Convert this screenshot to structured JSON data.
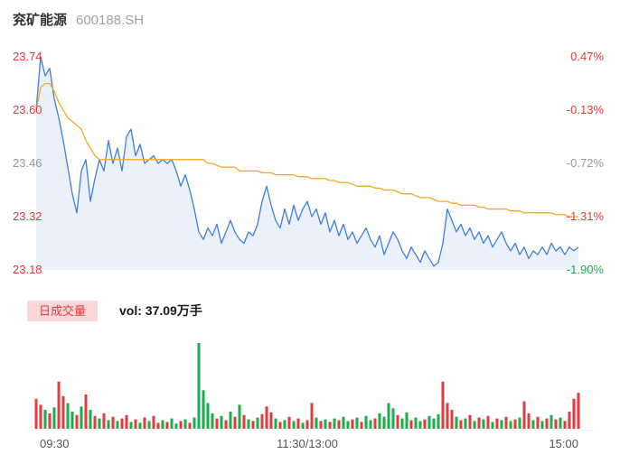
{
  "header": {
    "stock_name": "兖矿能源",
    "stock_code": "600188.SH"
  },
  "volume_header": {
    "badge": "日成交量",
    "vol_label": "vol: 37.09万手"
  },
  "chart_data": {
    "type": "line",
    "subtype": "stock-intraday",
    "x_ticks": [
      "09:30",
      "11:30/13:00",
      "15:00"
    ],
    "ylim": [
      23.18,
      23.74
    ],
    "grid": false,
    "left_axis_labels": [
      {
        "text": "23.74",
        "color": "#e23a3f"
      },
      {
        "text": "23.60",
        "color": "#e23a3f"
      },
      {
        "text": "23.46",
        "color": "#999999"
      },
      {
        "text": "23.32",
        "color": "#e23a3f"
      },
      {
        "text": "23.18",
        "color": "#e23a3f"
      }
    ],
    "right_axis_labels": [
      {
        "text": "0.47%",
        "color": "#e23a3f"
      },
      {
        "text": "-0.13%",
        "color": "#e23a3f"
      },
      {
        "text": "-0.72%",
        "color": "#999999"
      },
      {
        "text": "-1.31%",
        "color": "#e23a3f"
      },
      {
        "text": "-1.90%",
        "color": "#1aad4b"
      }
    ],
    "series": [
      {
        "name": "price",
        "color": "#3f7fd6",
        "fill": "rgba(63,127,214,0.11)",
        "values": [
          23.6,
          23.74,
          23.69,
          23.71,
          23.63,
          23.58,
          23.52,
          23.45,
          23.38,
          23.33,
          23.44,
          23.47,
          23.36,
          23.42,
          23.47,
          23.44,
          23.52,
          23.46,
          23.5,
          23.44,
          23.53,
          23.55,
          23.48,
          23.51,
          23.46,
          23.47,
          23.48,
          23.46,
          23.47,
          23.46,
          23.47,
          23.44,
          23.4,
          23.43,
          23.39,
          23.34,
          23.28,
          23.26,
          23.29,
          23.27,
          23.3,
          23.25,
          23.28,
          23.31,
          23.28,
          23.26,
          23.25,
          23.28,
          23.27,
          23.3,
          23.36,
          23.4,
          23.35,
          23.31,
          23.29,
          23.34,
          23.3,
          23.35,
          23.31,
          23.34,
          23.36,
          23.32,
          23.34,
          23.3,
          23.33,
          23.28,
          23.31,
          23.27,
          23.3,
          23.26,
          23.28,
          23.25,
          23.27,
          23.29,
          23.26,
          23.24,
          23.27,
          23.22,
          23.25,
          23.28,
          23.26,
          23.23,
          23.21,
          23.24,
          23.22,
          23.2,
          23.23,
          23.21,
          23.19,
          23.2,
          23.25,
          23.34,
          23.31,
          23.28,
          23.3,
          23.27,
          23.29,
          23.26,
          23.28,
          23.25,
          23.27,
          23.24,
          23.26,
          23.28,
          23.25,
          23.23,
          23.25,
          23.22,
          23.24,
          23.21,
          23.23,
          23.22,
          23.24,
          23.22,
          23.25,
          23.23,
          23.24,
          23.22,
          23.24,
          23.23,
          23.24
        ]
      },
      {
        "name": "average",
        "color": "#f6a821",
        "values": [
          23.6,
          23.66,
          23.67,
          23.67,
          23.65,
          23.62,
          23.6,
          23.58,
          23.57,
          23.56,
          23.55,
          23.52,
          23.5,
          23.48,
          23.47,
          23.47,
          23.47,
          23.47,
          23.47,
          23.47,
          23.47,
          23.47,
          23.47,
          23.47,
          23.47,
          23.47,
          23.47,
          23.47,
          23.47,
          23.47,
          23.47,
          23.47,
          23.47,
          23.47,
          23.47,
          23.47,
          23.47,
          23.47,
          23.46,
          23.46,
          23.455,
          23.45,
          23.45,
          23.45,
          23.45,
          23.44,
          23.44,
          23.44,
          23.44,
          23.44,
          23.435,
          23.435,
          23.435,
          23.43,
          23.43,
          23.43,
          23.43,
          23.43,
          23.425,
          23.425,
          23.425,
          23.42,
          23.42,
          23.42,
          23.42,
          23.415,
          23.415,
          23.41,
          23.41,
          23.41,
          23.405,
          23.4,
          23.4,
          23.4,
          23.4,
          23.395,
          23.395,
          23.39,
          23.39,
          23.39,
          23.385,
          23.38,
          23.38,
          23.38,
          23.375,
          23.37,
          23.37,
          23.37,
          23.365,
          23.36,
          23.36,
          23.36,
          23.355,
          23.355,
          23.35,
          23.35,
          23.35,
          23.35,
          23.345,
          23.345,
          23.34,
          23.34,
          23.34,
          23.34,
          23.34,
          23.335,
          23.335,
          23.335,
          23.33,
          23.33,
          23.33,
          23.33,
          23.33,
          23.33,
          23.33,
          23.325,
          23.325,
          23.325,
          23.32,
          23.32,
          23.32
        ]
      }
    ],
    "volume": {
      "total_label": "vol: 37.09万手",
      "up_color": "#e23a3f",
      "down_color": "#1aad4b",
      "values": [
        35,
        28,
        22,
        18,
        25,
        55,
        38,
        30,
        20,
        16,
        26,
        40,
        22,
        15,
        12,
        18,
        10,
        14,
        9,
        12,
        16,
        8,
        11,
        7,
        13,
        9,
        15,
        7,
        10,
        8,
        12,
        6,
        9,
        11,
        7,
        13,
        100,
        45,
        30,
        18,
        12,
        15,
        10,
        20,
        14,
        28,
        16,
        11,
        9,
        13,
        17,
        26,
        19,
        12,
        8,
        10,
        14,
        9,
        12,
        7,
        10,
        30,
        13,
        9,
        11,
        8,
        12,
        10,
        14,
        9,
        11,
        13,
        8,
        15,
        10,
        12,
        18,
        14,
        30,
        24,
        16,
        12,
        19,
        10,
        13,
        9,
        11,
        15,
        12,
        17,
        55,
        30,
        22,
        14,
        10,
        12,
        16,
        9,
        13,
        11,
        15,
        8,
        12,
        10,
        14,
        9,
        11,
        13,
        32,
        18,
        10,
        14,
        9,
        12,
        16,
        11,
        13,
        9,
        20,
        35,
        42
      ],
      "colors": "rrgrgrrggrgrgrgrgrgrrgrgrgrrgrggrgrgggggrgrgrgrgrgrrrgrgrgrgrrgrgrgrggrgrggrggggrggrggrgggrrrgrgrgrgrgrgrgrgrrgrgrgrgrrrr"
    }
  }
}
